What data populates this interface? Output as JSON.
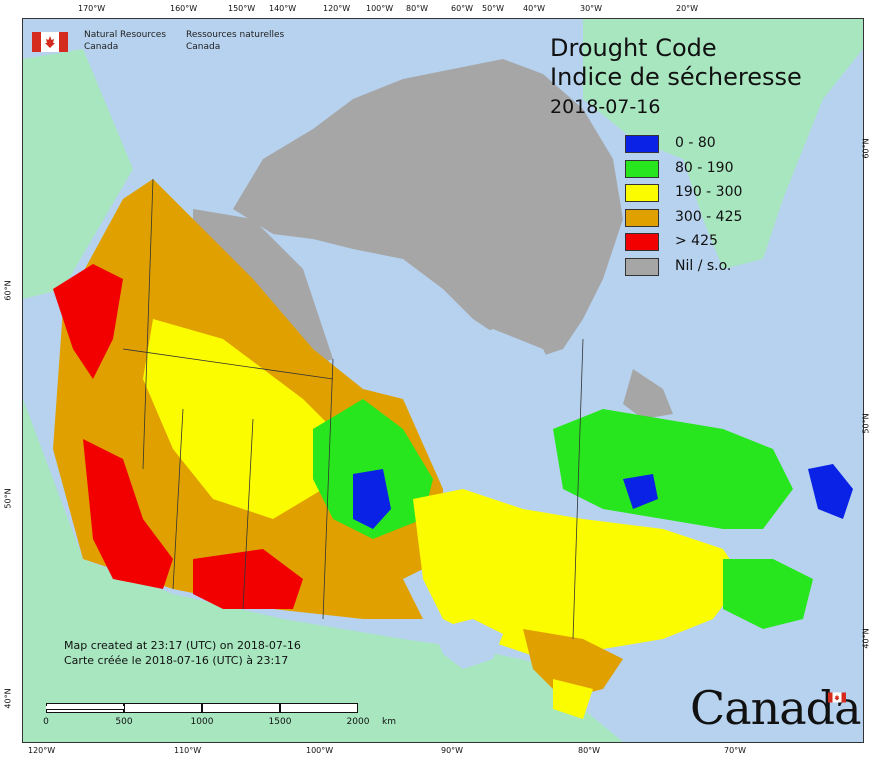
{
  "map": {
    "title_en": "Drought Code",
    "title_fr": "Indice de sécheresse",
    "date": "2018-07-16",
    "legend": [
      {
        "label": "0 - 80",
        "color": "#0a22e6"
      },
      {
        "label": "80 - 190",
        "color": "#27e61e"
      },
      {
        "label": "190 - 300",
        "color": "#fcfc00"
      },
      {
        "label": "300 - 425",
        "color": "#e0a000"
      },
      {
        "label": "> 425",
        "color": "#f20000"
      },
      {
        "label": "Nil / s.o.",
        "color": "#a6a6a6"
      }
    ],
    "colors": {
      "ocean": "#b6d2ee",
      "foreign_land": "#a8e6c0",
      "no_data": "#a6a6a6"
    },
    "agency": {
      "en_line1": "Natural Resources",
      "en_line2": "Canada",
      "fr_line1": "Ressources naturelles",
      "fr_line2": "Canada"
    },
    "credits": {
      "line_en": "Map created at 23:17 (UTC) on 2018-07-16",
      "line_fr": "Carte créée le 2018-07-16 (UTC) à 23:17"
    },
    "scalebar": {
      "labels": [
        "0",
        "500",
        "1000",
        "1500",
        "2000"
      ],
      "unit": "km"
    },
    "wordmark": "Canada",
    "graticule": {
      "top": [
        "170°W",
        "160°W",
        "150°W",
        "140°W",
        "120°W",
        "100°W",
        "80°W",
        "60°W",
        "50°W",
        "40°W",
        "30°W",
        "20°W"
      ],
      "bottom": [
        "120°W",
        "110°W",
        "100°W",
        "90°W",
        "80°W",
        "70°W"
      ],
      "left": [
        "60°N",
        "50°N",
        "40°N"
      ],
      "right": [
        "60°N",
        "50°N",
        "40°N"
      ]
    }
  }
}
